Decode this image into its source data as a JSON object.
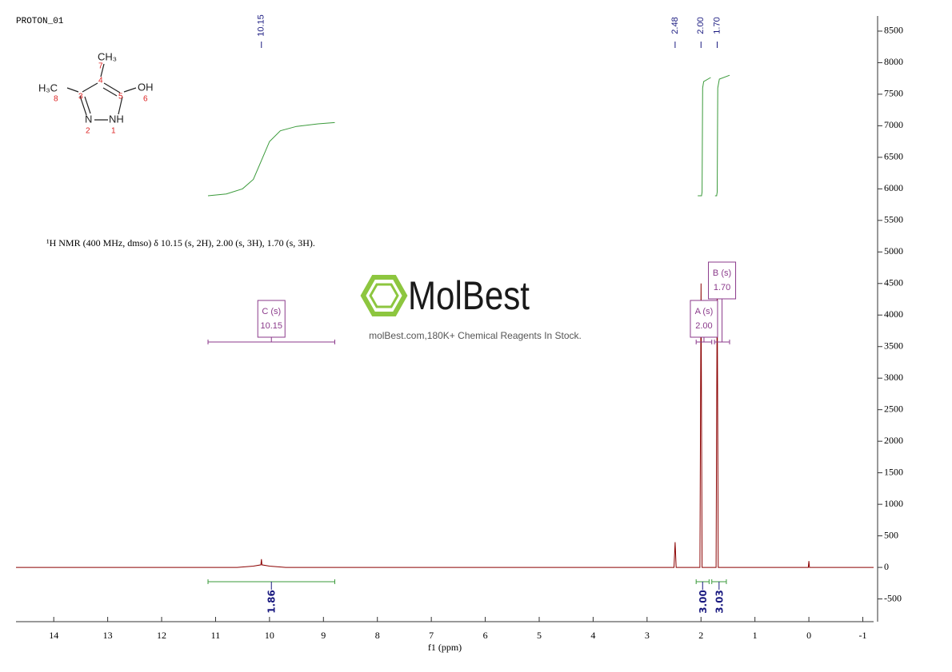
{
  "chart_data": {
    "type": "nmr",
    "title": "PROTON_01",
    "description": "¹H NMR (400 MHz, dmso) δ 10.15 (s, 2H), 2.00 (s, 3H), 1.70 (s, 3H).",
    "xlabel": "f1 (ppm)",
    "xlim": [
      14.7,
      -1.2
    ],
    "ylim": [
      -860,
      8740
    ],
    "xticks": [
      14,
      13,
      12,
      11,
      10,
      9,
      8,
      7,
      6,
      5,
      4,
      3,
      2,
      1,
      0,
      -1
    ],
    "yticks": [
      -500,
      0,
      500,
      1000,
      1500,
      2000,
      2500,
      3000,
      3500,
      4000,
      4500,
      5000,
      5500,
      6000,
      6500,
      7000,
      7500,
      8000,
      8500
    ],
    "spectrum": {
      "color": "#8b0000",
      "x": [
        14.7,
        10.6,
        10.3,
        10.16,
        10.15,
        10.14,
        10.0,
        9.7,
        2.5,
        2.48,
        2.46,
        2.02,
        2.0,
        1.98,
        1.72,
        1.7,
        1.68,
        0.01,
        0,
        -0.01,
        -1.2
      ],
      "values": [
        0,
        0,
        20,
        40,
        130,
        40,
        20,
        0,
        0,
        400,
        0,
        0,
        4500,
        0,
        0,
        4550,
        0,
        0,
        100,
        0,
        0
      ]
    },
    "integral_color": "#3a9a3a",
    "integral_curves": [
      {
        "x": [
          11.14,
          10.8,
          10.5,
          10.3,
          10.15,
          10.0,
          9.8,
          9.5,
          9.1,
          8.79
        ],
        "values": [
          5890,
          5920,
          6000,
          6150,
          6450,
          6750,
          6920,
          6990,
          7030,
          7050
        ]
      },
      {
        "x": [
          2.06,
          1.99,
          1.98,
          1.97,
          1.95,
          1.82
        ],
        "values": [
          5890,
          5890,
          5950,
          7600,
          7700,
          7765
        ]
      },
      {
        "x": [
          1.74,
          1.71,
          1.7,
          1.69,
          1.66,
          1.47
        ],
        "values": [
          5890,
          5890,
          5950,
          7600,
          7740,
          7800
        ]
      }
    ],
    "integrals": [
      {
        "from": 11.14,
        "to": 8.79,
        "value": 1.86
      },
      {
        "from": 2.09,
        "to": 1.85,
        "value": 3,
        "label": "3.00"
      },
      {
        "from": 1.8,
        "to": 1.53,
        "value": 3.03
      }
    ],
    "multiplet_color": "#8b3a8b",
    "multiplets": [
      {
        "name": "C (s)",
        "shift": 10.15,
        "from": 11.14,
        "to": 8.79
      },
      {
        "name": "A (s)",
        "shift": {
          "value": 2,
          "label": "2.00"
        },
        "from": 2.09,
        "to": 1.8
      },
      {
        "name": "B (s)",
        "shift": {
          "value": 1.7,
          "label": "1.70"
        },
        "from": 1.75,
        "to": 1.47
      }
    ],
    "peaks": [
      10.15,
      2.48,
      {
        "value": 2,
        "label": "2.00"
      },
      {
        "value": 1.7,
        "label": "1.70"
      }
    ],
    "structure": {
      "atoms": [
        "CH₃",
        "H₃C",
        "OH",
        "N",
        "NH"
      ],
      "numbers": [
        "7",
        "4",
        "3",
        "5",
        "8",
        "6",
        "2",
        "1"
      ]
    },
    "watermark": {
      "brand": "MolBest",
      "tagline": "molBest.com,180K+ Chemical Reagents In Stock."
    }
  }
}
